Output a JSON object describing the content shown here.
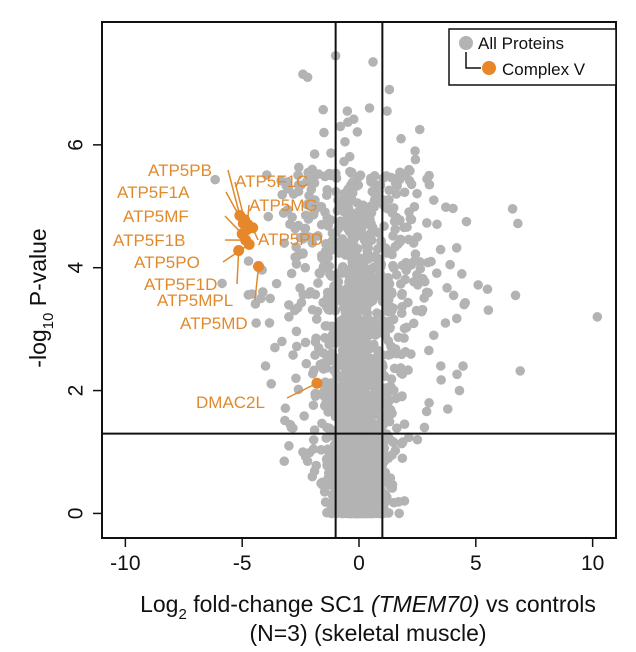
{
  "chart_data": {
    "type": "scatter",
    "title": "",
    "xlabel": {
      "prefix": "Log",
      "sub": "2",
      "main": " fold-change SC1 ",
      "italic": "(TMEM70)",
      "suffix": " vs controls",
      "line2": "(N=3) (skeletal muscle)"
    },
    "ylabel": {
      "prefix": "-log",
      "sub": "10",
      "suffix": " P-value"
    },
    "xlim": [
      -11,
      11
    ],
    "ylim": [
      -0.4,
      8
    ],
    "xticks": [
      -10,
      -5,
      0,
      5,
      10
    ],
    "xtick_labels": [
      "-10",
      "-5",
      "0",
      "5",
      "10"
    ],
    "yticks": [
      0,
      2,
      4,
      6
    ],
    "ytick_labels": [
      "0",
      "2",
      "4",
      "6"
    ],
    "thresholds": {
      "x_left": -1,
      "x_right": 1,
      "y": 1.3
    },
    "legend": {
      "placement": "top-right",
      "items": [
        {
          "label": "All Proteins",
          "color": "#b3b3b3"
        },
        {
          "label": "Complex V",
          "color": "#e8862a"
        }
      ]
    },
    "colors": {
      "all": "#b3b3b3",
      "complex": "#e8862a",
      "label": "#e08a2c"
    },
    "series": [
      {
        "name": "Complex V",
        "points": [
          {
            "label": "ATP5PB",
            "x": -5.1,
            "y": 4.85
          },
          {
            "label": "ATP5F1C",
            "x": -4.9,
            "y": 4.78
          },
          {
            "label": "ATP5F1A",
            "x": -4.95,
            "y": 4.72
          },
          {
            "label": "ATP5MG",
            "x": -4.8,
            "y": 4.62
          },
          {
            "label": "ATP5MF",
            "x": -5.0,
            "y": 4.55
          },
          {
            "label": "ATP5PD",
            "x": -4.55,
            "y": 4.65
          },
          {
            "label": "ATP5F1B",
            "x": -4.85,
            "y": 4.45
          },
          {
            "label": "ATP5PO",
            "x": -4.7,
            "y": 4.38
          },
          {
            "label": "ATP5F1D",
            "x": -5.15,
            "y": 4.28
          },
          {
            "label": "ATP5MPL",
            "x": -4.3,
            "y": 4.02
          },
          {
            "label": "ATP5MD",
            "x": -4.75,
            "y": 4.7
          },
          {
            "label": "DMAC2L",
            "x": -1.8,
            "y": 2.12
          }
        ]
      },
      {
        "name": "All Proteins",
        "seed": 12345,
        "count": 2200,
        "extra_points": [
          [
            10.2,
            3.2
          ],
          [
            6.8,
            4.72
          ],
          [
            6.7,
            3.55
          ],
          [
            6.9,
            2.32
          ],
          [
            5.5,
            3.65
          ],
          [
            5.1,
            3.72
          ],
          [
            4.6,
            4.75
          ],
          [
            4.5,
            3.4
          ],
          [
            4.4,
            3.9
          ],
          [
            4.3,
            2.0
          ],
          [
            3.9,
            4.05
          ],
          [
            4.05,
            3.55
          ],
          [
            3.7,
            3.1
          ],
          [
            3.2,
            5.1
          ],
          [
            3.0,
            5.5
          ],
          [
            2.6,
            6.25
          ],
          [
            2.4,
            5.9
          ],
          [
            2.5,
            4.5
          ],
          [
            -2.4,
            7.15
          ],
          [
            -2.2,
            7.1
          ],
          [
            -1.0,
            7.45
          ],
          [
            -0.6,
            6.05
          ],
          [
            -0.8,
            6.3
          ],
          [
            -1.5,
            6.2
          ],
          [
            -1.9,
            5.85
          ],
          [
            -2.0,
            5.6
          ],
          [
            -2.8,
            5.2
          ],
          [
            -3.2,
            4.4
          ],
          [
            -3.8,
            3.5
          ],
          [
            -4.2,
            3.5
          ],
          [
            -4.4,
            3.1
          ],
          [
            -3.0,
            3.2
          ],
          [
            -4.0,
            2.4
          ],
          [
            -3.3,
            2.8
          ],
          [
            -3.6,
            2.7
          ],
          [
            -2.7,
            2.2
          ],
          [
            -3.0,
            1.1
          ],
          [
            -3.2,
            0.85
          ],
          [
            -2.4,
            1.0
          ],
          [
            -2.2,
            0.85
          ],
          [
            -2.9,
            1.4
          ],
          [
            -2.0,
            0.6
          ],
          [
            3.2,
            2.9
          ],
          [
            3.5,
            2.4
          ],
          [
            3.0,
            1.8
          ],
          [
            2.8,
            1.4
          ],
          [
            2.5,
            1.2
          ],
          [
            3.8,
            1.7
          ],
          [
            1.2,
            6.55
          ],
          [
            1.8,
            6.1
          ],
          [
            1.3,
            6.9
          ],
          [
            -0.9,
            5.1
          ],
          [
            0.6,
            7.35
          ],
          [
            0.45,
            6.6
          ],
          [
            -0.5,
            6.55
          ],
          [
            -2.6,
            4.2
          ],
          [
            -2.3,
            4.0
          ],
          [
            2.2,
            4.8
          ],
          [
            -1.2,
            5.5
          ],
          [
            -1.6,
            4.7
          ],
          [
            1.6,
            5.2
          ],
          [
            2.9,
            3.6
          ]
        ]
      }
    ]
  }
}
